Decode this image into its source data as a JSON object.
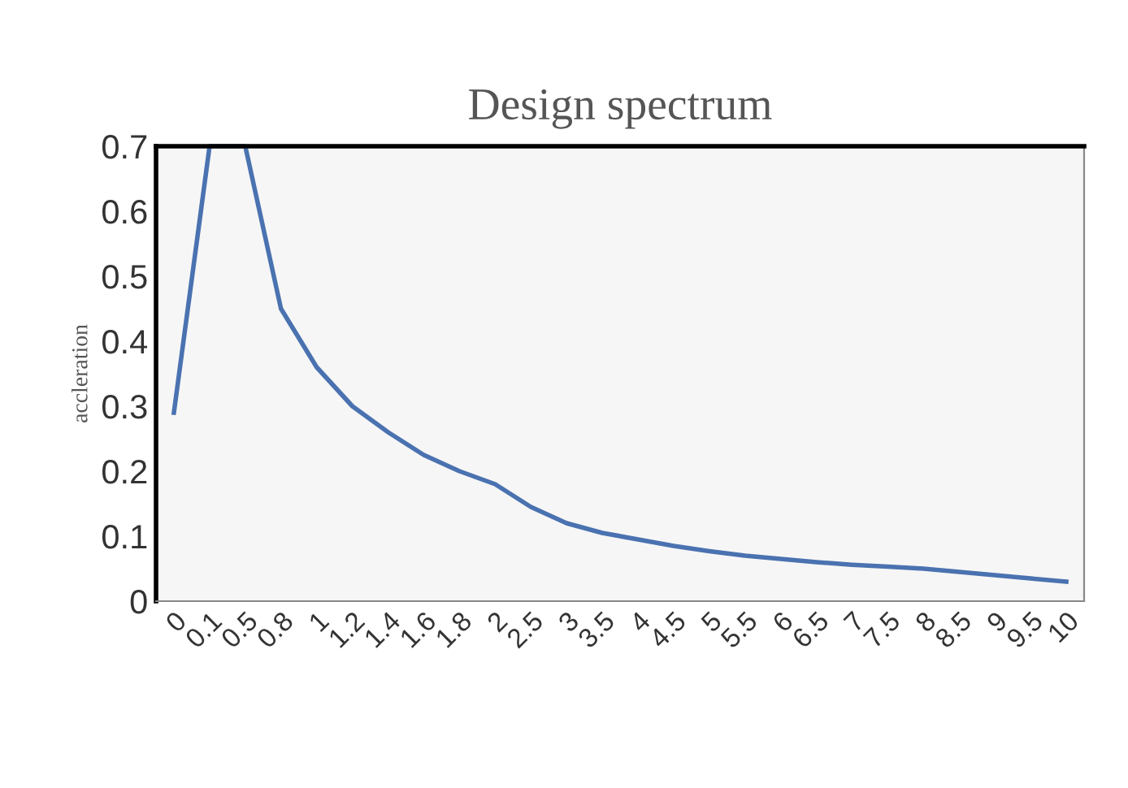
{
  "chart_data": {
    "type": "line",
    "title": "Design spectrum",
    "ylabel": "accleration",
    "categories": [
      "0",
      "0.1",
      "0.5",
      "0.8",
      "1",
      "1.2",
      "1.4",
      "1.6",
      "1.8",
      "2",
      "2.5",
      "3",
      "3.5",
      "4",
      "4.5",
      "5",
      "5.5",
      "6",
      "6.5",
      "7",
      "7.5",
      "8",
      "8.5",
      "9",
      "9.5",
      "10"
    ],
    "series": [
      {
        "color": "#4a72b0",
        "values": [
          0.29,
          0.7,
          0.7,
          0.45,
          0.36,
          0.3,
          0.26,
          0.225,
          0.2,
          0.18,
          0.145,
          0.12,
          0.105,
          0.095,
          0.085,
          0.077,
          0.07,
          0.065,
          0.06,
          0.056,
          0.053,
          0.05,
          0.045,
          0.04,
          0.035,
          0.03
        ]
      }
    ],
    "ylim": [
      0,
      0.7
    ],
    "yticks": [
      0,
      0.1,
      0.2,
      0.3,
      0.4,
      0.5,
      0.6,
      0.7
    ],
    "grid": false,
    "marker": "none",
    "line_style": "solid"
  }
}
